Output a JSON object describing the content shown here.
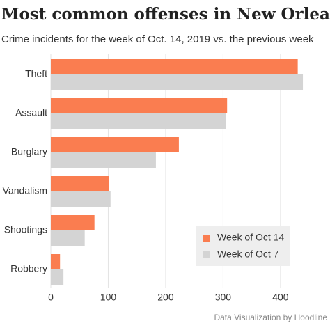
{
  "chart_data": {
    "type": "bar",
    "orientation": "horizontal",
    "title": "Most common offenses in New Orleans",
    "subtitle": "Crime incidents for the week of Oct. 14, 2019 vs. the previous week",
    "categories": [
      "Theft",
      "Assault",
      "Burglary",
      "Vandalism",
      "Shootings",
      "Robbery"
    ],
    "series": [
      {
        "name": "Week of Oct 14",
        "color": "#fa7d50",
        "values": [
          430,
          307,
          223,
          101,
          76,
          16
        ]
      },
      {
        "name": "Week of Oct 7",
        "color": "#d4d4d4",
        "values": [
          439,
          305,
          183,
          104,
          59,
          22
        ]
      }
    ],
    "xlim": [
      0,
      445
    ],
    "xticks": [
      0,
      100,
      200,
      300,
      400
    ],
    "grid": true,
    "legend": "lower right",
    "credit": "Data Visualization by Hoodline"
  }
}
